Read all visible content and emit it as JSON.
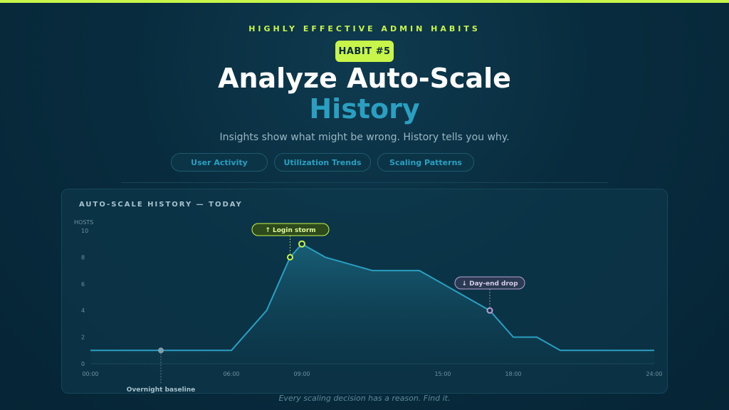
{
  "header": {
    "eyebrow": "HIGHLY EFFECTIVE ADMIN HABITS",
    "badge": "HABIT #5",
    "title_line1": "Analyze Auto-Scale",
    "title_line2": "History",
    "subtitle": "Insights show what might be wrong. History tells you why."
  },
  "tabs": [
    {
      "label": "User Activity"
    },
    {
      "label": "Utilization Trends"
    },
    {
      "label": "Scaling Patterns"
    }
  ],
  "panel": {
    "title": "AUTO-SCALE HISTORY — TODAY"
  },
  "footer": "Every scaling decision has a reason. Find it.",
  "colors": {
    "accent": "#c8f54a",
    "brand": "#2a9fc0",
    "drop": "#b8a4d6",
    "baseline": "#7f9fad"
  },
  "chart_data": {
    "type": "area",
    "ylabel": "HOSTS",
    "ylim": [
      0,
      10
    ],
    "y_ticks": [
      0,
      2,
      4,
      6,
      8,
      10
    ],
    "xlim": [
      0,
      24
    ],
    "x_ticks": [
      0,
      6,
      9,
      15,
      18,
      24
    ],
    "x_tick_labels": [
      "00:00",
      "06:00",
      "09:00",
      "15:00",
      "18:00",
      "24:00"
    ],
    "series": [
      {
        "x": [
          0,
          3,
          6,
          7.5,
          8.5,
          9,
          10,
          12,
          14,
          15,
          17,
          18,
          19,
          20,
          24
        ],
        "y": [
          1,
          1,
          1,
          4,
          8,
          9,
          8,
          7,
          7,
          6,
          4,
          2,
          2,
          1,
          1
        ]
      }
    ],
    "annotations": [
      {
        "label": "↑ Login storm",
        "x": 8.5,
        "y": 8,
        "style": "accent"
      },
      {
        "label": "↓ Day-end drop",
        "x": 17,
        "y": 4,
        "style": "drop"
      },
      {
        "label": "Overnight baseline",
        "x": 3,
        "y": 1,
        "style": "baseline"
      }
    ],
    "highlight_points": [
      {
        "x": 9,
        "y": 9
      }
    ]
  }
}
